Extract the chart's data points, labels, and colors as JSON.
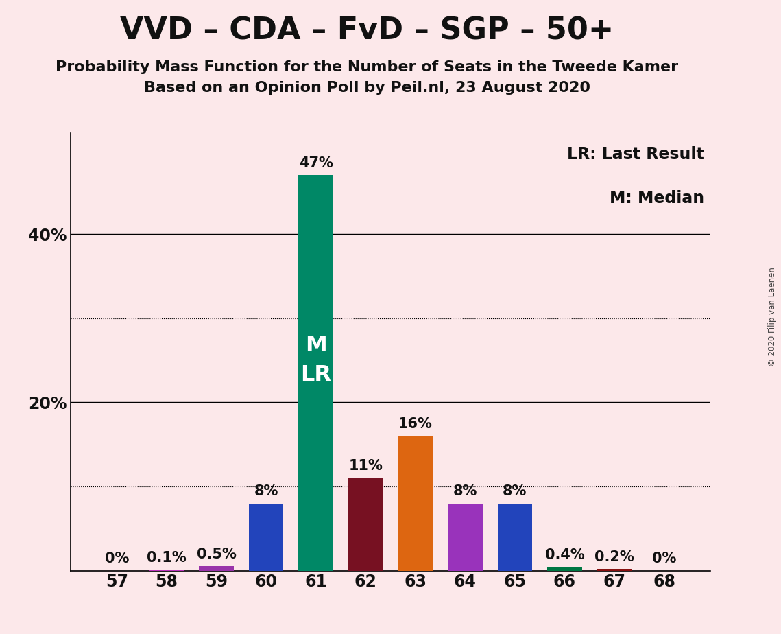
{
  "title": "VVD – CDA – FvD – SGP – 50+",
  "subtitle1": "Probability Mass Function for the Number of Seats in the Tweede Kamer",
  "subtitle2": "Based on an Opinion Poll by Peil.nl, 23 August 2020",
  "copyright": "© 2020 Filip van Laenen",
  "categories": [
    57,
    58,
    59,
    60,
    61,
    62,
    63,
    64,
    65,
    66,
    67,
    68
  ],
  "values": [
    0.001,
    0.1,
    0.5,
    8.0,
    47.0,
    11.0,
    16.0,
    8.0,
    8.0,
    0.4,
    0.2,
    0.001
  ],
  "labels": [
    "0%",
    "0.1%",
    "0.5%",
    "8%",
    "47%",
    "11%",
    "16%",
    "8%",
    "8%",
    "0.4%",
    "0.2%",
    "0%"
  ],
  "bar_colors": [
    "#1a3399",
    "#bb33bb",
    "#9933aa",
    "#2244bb",
    "#008866",
    "#771122",
    "#dd6611",
    "#9933bb",
    "#2244bb",
    "#007744",
    "#881111",
    "#cc2222"
  ],
  "background_color": "#fce8ea",
  "ylim": [
    0,
    52
  ],
  "ytick_positions": [
    20,
    40
  ],
  "ytick_labels": [
    "20%",
    "40%"
  ],
  "dotted_lines": [
    10,
    30
  ],
  "median_bar": 61,
  "lr_bar": 61,
  "legend_text1": "LR: Last Result",
  "legend_text2": "M: Median",
  "bar_width": 0.7,
  "title_fontsize": 32,
  "subtitle_fontsize": 16,
  "label_fontsize": 15,
  "tick_fontsize": 17,
  "legend_fontsize": 17,
  "ml_fontsize": 23
}
